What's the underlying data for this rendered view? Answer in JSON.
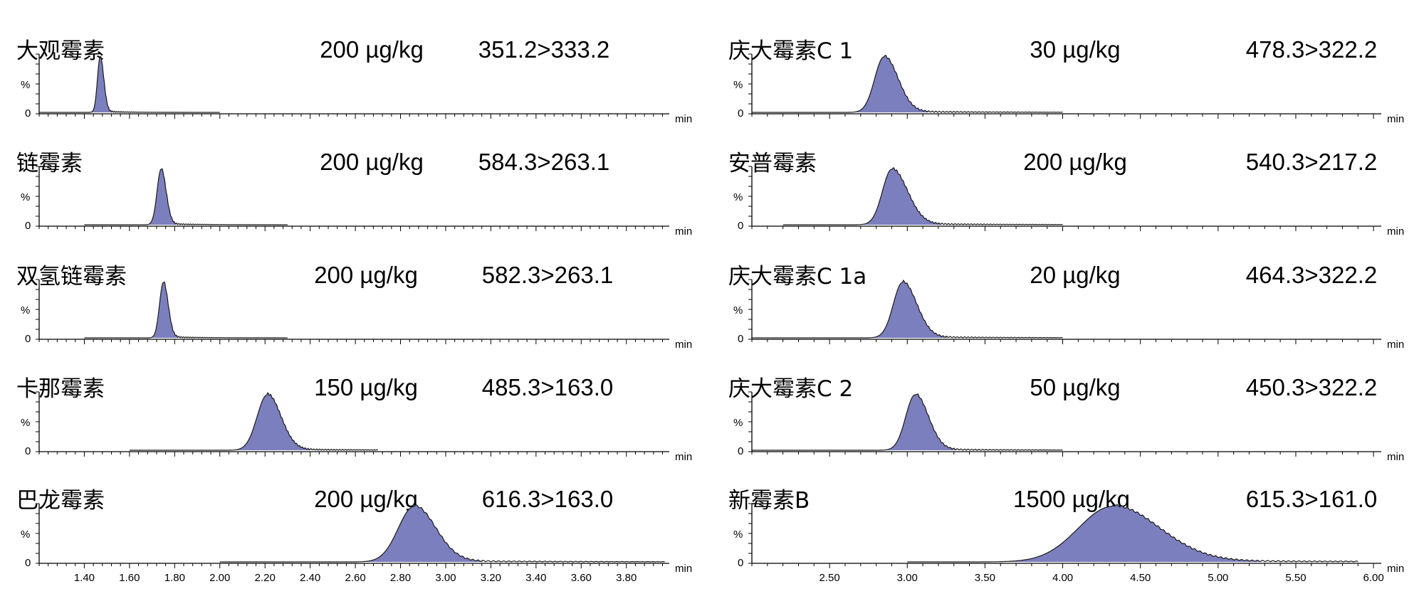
{
  "chart_data": [
    {
      "type": "area",
      "xlabel": "min",
      "ylabel": "%",
      "ytick": "0",
      "xlim": [
        1.2,
        3.99
      ],
      "xticks": [
        "1.40",
        "1.60",
        "1.80",
        "2.00",
        "2.20",
        "2.40",
        "2.60",
        "2.80",
        "3.00",
        "3.20",
        "3.40",
        "3.60",
        "3.80"
      ],
      "xtick_values": [
        1.4,
        1.6,
        1.8,
        2.0,
        2.2,
        2.4,
        2.6,
        2.8,
        3.0,
        3.2,
        3.4,
        3.6,
        3.8
      ],
      "panels": [
        {
          "compound": "大观霉素",
          "concentration": "200 µg/kg",
          "transition": "351.2>333.2",
          "data_range": [
            1.2,
            2.0
          ],
          "peak": {
            "rt": 1.47,
            "sigma_left": 0.012,
            "sigma_right": 0.016
          }
        },
        {
          "compound": "链霉素",
          "concentration": "200 µg/kg",
          "transition": "584.3>263.1",
          "data_range": [
            1.4,
            2.3
          ],
          "peak": {
            "rt": 1.74,
            "sigma_left": 0.018,
            "sigma_right": 0.022
          }
        },
        {
          "compound": "双氢链霉素",
          "concentration": "200 µg/kg",
          "transition": "582.3>263.1",
          "data_range": [
            1.4,
            2.3
          ],
          "peak": {
            "rt": 1.75,
            "sigma_left": 0.017,
            "sigma_right": 0.021
          }
        },
        {
          "compound": "卡那霉素",
          "concentration": "150 µg/kg",
          "transition": "485.3>163.0",
          "data_range": [
            1.6,
            2.7
          ],
          "peak": {
            "rt": 2.21,
            "sigma_left": 0.045,
            "sigma_right": 0.06
          }
        },
        {
          "compound": "巴龙霉素",
          "concentration": "200 µg/kg",
          "transition": "616.3>163.0",
          "data_range": [
            2.0,
            3.97
          ],
          "peak": {
            "rt": 2.86,
            "sigma_left": 0.07,
            "sigma_right": 0.095
          }
        }
      ]
    },
    {
      "type": "area",
      "xlabel": "min",
      "ylabel": "%",
      "ytick": "0",
      "xlim": [
        2.0,
        6.05
      ],
      "xticks": [
        "2.50",
        "3.00",
        "3.50",
        "4.00",
        "4.50",
        "5.00",
        "5.50",
        "6.00"
      ],
      "xtick_values": [
        2.5,
        3.0,
        3.5,
        4.0,
        4.5,
        5.0,
        5.5,
        6.0
      ],
      "panels": [
        {
          "compound": "庆大霉素C 1",
          "concentration": "30 µg/kg",
          "transition": "478.3>322.2",
          "data_range": [
            2.0,
            4.0
          ],
          "peak": {
            "rt": 2.85,
            "sigma_left": 0.06,
            "sigma_right": 0.09
          }
        },
        {
          "compound": "安普霉素",
          "concentration": "200 µg/kg",
          "transition": "540.3>217.2",
          "data_range": [
            2.2,
            4.0
          ],
          "peak": {
            "rt": 2.9,
            "sigma_left": 0.06,
            "sigma_right": 0.1
          }
        },
        {
          "compound": "庆大霉素C 1a",
          "concentration": "20 µg/kg",
          "transition": "464.3>322.2",
          "data_range": [
            2.0,
            4.0
          ],
          "peak": {
            "rt": 2.97,
            "sigma_left": 0.06,
            "sigma_right": 0.09
          }
        },
        {
          "compound": "庆大霉素C 2",
          "concentration": "50 µg/kg",
          "transition": "450.3>322.2",
          "data_range": [
            2.0,
            4.0
          ],
          "peak": {
            "rt": 3.05,
            "sigma_left": 0.06,
            "sigma_right": 0.085
          }
        },
        {
          "compound": "新霉素B",
          "concentration": "1500 µg/kg",
          "transition": "615.3>161.0",
          "data_range": [
            3.0,
            5.9
          ],
          "peak": {
            "rt": 4.32,
            "sigma_left": 0.22,
            "sigma_right": 0.3
          }
        }
      ]
    }
  ],
  "colors": {
    "peak_fill": "#7b7fbd",
    "line": "#1a1a1a",
    "axis": "#000000",
    "background": "#ffffff"
  }
}
